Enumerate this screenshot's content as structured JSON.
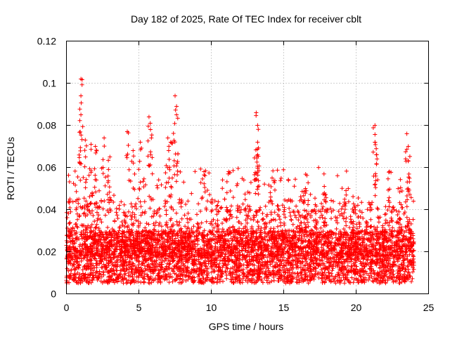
{
  "chart_data": {
    "type": "scatter",
    "title": "Day 182 of 2025, Rate Of TEC Index for receiver cblt",
    "xlabel": "GPS time / hours",
    "ylabel": "ROTI / TECUs",
    "xlim": [
      0,
      25
    ],
    "ylim": [
      0,
      0.12
    ],
    "xticks": [
      0,
      5,
      10,
      15,
      20,
      25
    ],
    "xtick_labels": [
      "0",
      "5",
      "10",
      "15",
      "20",
      "25"
    ],
    "yticks": [
      0,
      0.02,
      0.04,
      0.06,
      0.08,
      0.1,
      0.12
    ],
    "ytick_labels": [
      "0",
      "0.02",
      "0.04",
      "0.06",
      "0.08",
      "0.1",
      "0.12"
    ],
    "grid": true,
    "marker": "+",
    "marker_color": "#ff0000",
    "series": [
      {
        "name": "ROTI",
        "x_range": [
          0,
          24
        ],
        "dense_band": [
          0.005,
          0.03
        ],
        "typical_upper": 0.06,
        "peaks": [
          {
            "x": 1.0,
            "y": 0.102
          },
          {
            "x": 1.0,
            "y": 0.094
          },
          {
            "x": 1.0,
            "y": 0.085
          },
          {
            "x": 1.3,
            "y": 0.073
          },
          {
            "x": 1.7,
            "y": 0.071
          },
          {
            "x": 2.0,
            "y": 0.07
          },
          {
            "x": 2.6,
            "y": 0.074
          },
          {
            "x": 3.0,
            "y": 0.065
          },
          {
            "x": 4.2,
            "y": 0.077
          },
          {
            "x": 4.6,
            "y": 0.068
          },
          {
            "x": 5.1,
            "y": 0.072
          },
          {
            "x": 5.7,
            "y": 0.084
          },
          {
            "x": 5.8,
            "y": 0.078
          },
          {
            "x": 7.0,
            "y": 0.074
          },
          {
            "x": 7.2,
            "y": 0.072
          },
          {
            "x": 7.5,
            "y": 0.094
          },
          {
            "x": 7.6,
            "y": 0.089
          },
          {
            "x": 7.6,
            "y": 0.085
          },
          {
            "x": 9.5,
            "y": 0.058
          },
          {
            "x": 11.2,
            "y": 0.058
          },
          {
            "x": 13.1,
            "y": 0.086
          },
          {
            "x": 13.2,
            "y": 0.08
          },
          {
            "x": 13.2,
            "y": 0.072
          },
          {
            "x": 13.2,
            "y": 0.066
          },
          {
            "x": 14.2,
            "y": 0.055
          },
          {
            "x": 16.5,
            "y": 0.05
          },
          {
            "x": 17.8,
            "y": 0.051
          },
          {
            "x": 19.3,
            "y": 0.049
          },
          {
            "x": 21.3,
            "y": 0.08
          },
          {
            "x": 21.3,
            "y": 0.072
          },
          {
            "x": 21.4,
            "y": 0.066
          },
          {
            "x": 22.3,
            "y": 0.058
          },
          {
            "x": 23.5,
            "y": 0.076
          },
          {
            "x": 23.6,
            "y": 0.07
          },
          {
            "x": 23.6,
            "y": 0.063
          }
        ]
      }
    ]
  }
}
